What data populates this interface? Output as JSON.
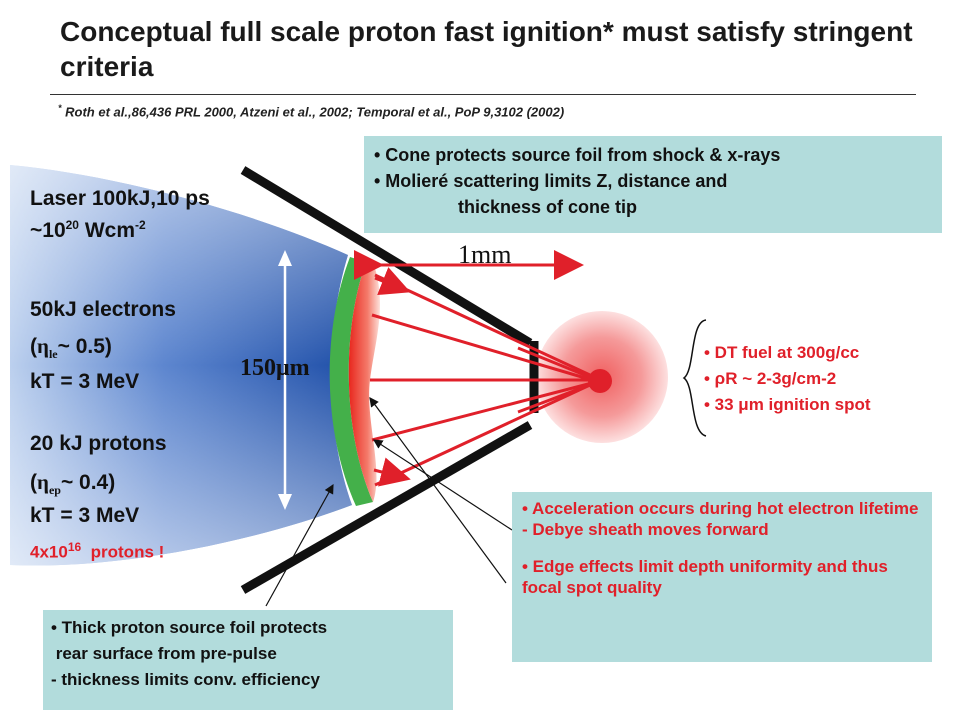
{
  "title": "Conceptual full scale proton fast ignition* must satisfy stringent criteria",
  "reference": {
    "marker": "*",
    "text": "Roth et al.,86,436 PRL 2000, Atzeni et al., 2002; Temporal et al., PoP 9,3102 (2002)"
  },
  "laser": {
    "line1": "Laser 100kJ,10 ps",
    "intensity_prefix": "~10",
    "intensity_exp": "20",
    "intensity_unit": " Wcm",
    "intensity_unit_exp": "-2",
    "electrons": "50kJ electrons",
    "eta_le_open": "(",
    "eta_symbol": "η",
    "eta_le_sub": "le",
    "eta_le_value": "~ 0.5)",
    "kt1": "kT = 3 MeV",
    "protons": "20 kJ protons",
    "eta_ep_open": "(",
    "eta_ep_sub": "ep",
    "eta_ep_value": "~ 0.4)",
    "kt2": "kT = 3 MeV",
    "count_prefix": "4x10",
    "count_exp": "16",
    "count_suffix": "  protons !"
  },
  "dimensions": {
    "mm_label": "1mm",
    "um_label": "150μm"
  },
  "top_box": {
    "item1": "• Cone protects source foil from shock & x-rays",
    "item2_line1": "• Molieré scattering limits Z, distance and",
    "item2_line2": "thickness of cone tip"
  },
  "fuel": {
    "item1": "• DT fuel at 300g/cc",
    "item2": "• ρR ~ 2-3g/cm-2",
    "item3": "• 33 μm ignition spot"
  },
  "right_box": {
    "item1": "• Acceleration occurs during hot electron lifetime - Debye sheath moves forward",
    "item2": "• Edge effects limit depth uniformity and thus focal spot quality"
  },
  "bottom_box": {
    "item1_line1": "• Thick proton source foil protects",
    "item1_line2": " rear surface from pre-pulse",
    "item2": "- thickness limits conv. efficiency"
  },
  "colors": {
    "accent_red": "#e0202a",
    "box_teal": "#b2dcdc",
    "foil_green": "#44b04a",
    "laser_blue": "#1f4fa8"
  }
}
